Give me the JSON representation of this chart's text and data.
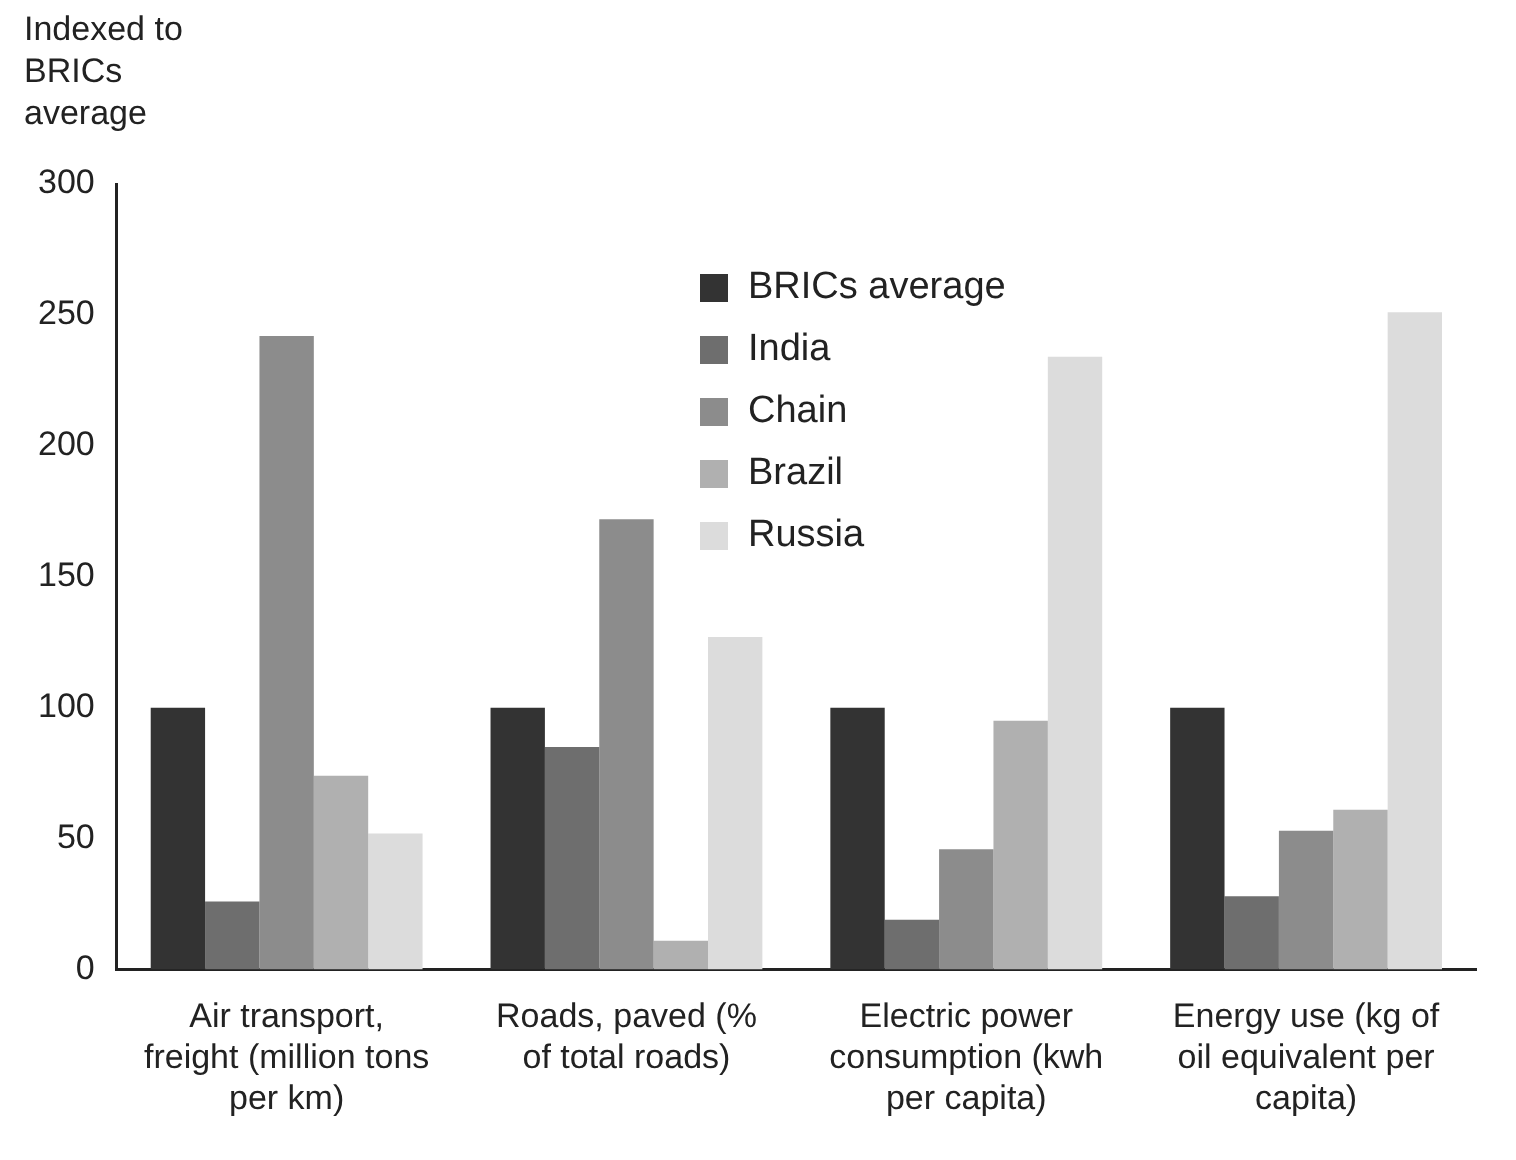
{
  "chart_data": {
    "type": "bar",
    "ylabel": "Indexed to BRICs average",
    "categories": [
      "Air transport, freight (million tons per km)",
      "Roads, paved (% of total roads)",
      "Electric power consumption (kwh per capita)",
      "Energy use (kg of oil equivalent per capita)"
    ],
    "series": [
      {
        "name": "BRICs average",
        "color": "#333333",
        "values": [
          100,
          100,
          100,
          100
        ]
      },
      {
        "name": "India",
        "color": "#6e6e6e",
        "values": [
          26,
          85,
          19,
          28
        ]
      },
      {
        "name": "Chain",
        "color": "#8c8c8c",
        "values": [
          242,
          172,
          46,
          53
        ]
      },
      {
        "name": "Brazil",
        "color": "#b0b0b0",
        "values": [
          74,
          11,
          95,
          61
        ]
      },
      {
        "name": "Russia",
        "color": "#dcdcdc",
        "values": [
          52,
          127,
          234,
          251
        ]
      }
    ],
    "ylim": [
      0,
      300
    ],
    "yticks": [
      0,
      50,
      100,
      150,
      200,
      250,
      300
    ],
    "grid": false,
    "legend": "top"
  }
}
